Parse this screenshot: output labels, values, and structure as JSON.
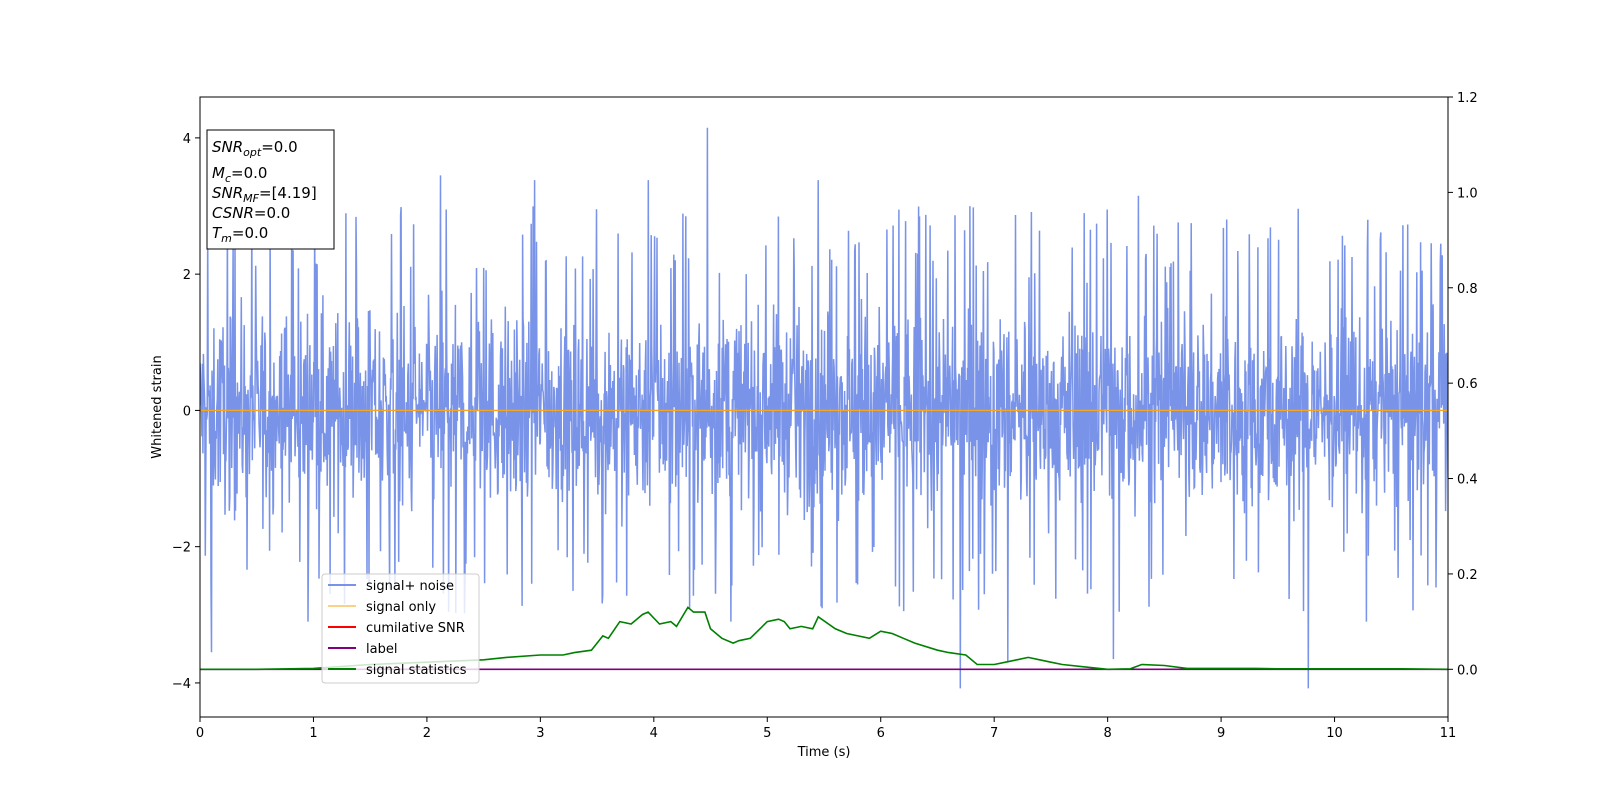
{
  "chart_data": {
    "type": "line",
    "xlabel": "Time (s)",
    "ylabel": "Whitened strain",
    "xlim": [
      0,
      11
    ],
    "ylim": [
      -4.5,
      4.6
    ],
    "y2lim": [
      -0.1,
      1.2
    ],
    "grid": false,
    "x_ticks": [
      "0",
      "1",
      "2",
      "3",
      "4",
      "5",
      "6",
      "7",
      "8",
      "9",
      "10",
      "11"
    ],
    "y_ticks": [
      "-4",
      "-2",
      "0",
      "2",
      "4"
    ],
    "y2_ticks": [
      "0.0",
      "0.2",
      "0.4",
      "0.6",
      "0.8",
      "1.0",
      "1.2"
    ],
    "info_box": {
      "snr_opt": {
        "main": "SNR",
        "sub": "opt",
        "value": "=0.0"
      },
      "mc": {
        "main": "M",
        "sub": "c",
        "value": "=0.0"
      },
      "snr_mf": {
        "main": "SNR",
        "sub": "MF",
        "value": "=[4.19]"
      },
      "csnr": {
        "main": "CSNR",
        "value": "=0.0"
      },
      "tm": {
        "main": "T",
        "sub": "m",
        "value": "=0.0"
      }
    },
    "legend": {
      "placement": "lower-left",
      "entries": [
        "signal+ noise",
        "signal only",
        "cumilative SNR",
        "label",
        "signal statistics"
      ]
    },
    "series": [
      {
        "name": "signal+ noise",
        "axis": "left",
        "color": "#7893e8",
        "envelope": "noise band approx. ±1.5, peaks up to ±3.5",
        "spikes": [
          [
            0.1,
            -3.55
          ],
          [
            0.95,
            -3.1
          ],
          [
            2.12,
            3.45
          ],
          [
            2.95,
            3.38
          ],
          [
            3.95,
            3.38
          ],
          [
            4.47,
            4.15
          ],
          [
            4.68,
            -3.1
          ],
          [
            5.45,
            3.38
          ],
          [
            6.7,
            -4.08
          ],
          [
            7.12,
            -3.7
          ],
          [
            8.05,
            -3.65
          ],
          [
            8.27,
            3.15
          ],
          [
            9.77,
            -4.08
          ],
          [
            10.28,
            -3.1
          ]
        ]
      },
      {
        "name": "signal only",
        "axis": "left",
        "color": "#f5a623",
        "x": [
          0,
          11
        ],
        "y": [
          0,
          0
        ]
      },
      {
        "name": "label",
        "axis": "right",
        "color": "#800080",
        "x": [
          0,
          11
        ],
        "y": [
          0,
          0
        ]
      },
      {
        "name": "signal statistics",
        "axis": "right",
        "color": "#008000",
        "x": [
          0,
          0.5,
          1.0,
          1.5,
          2.0,
          2.5,
          2.7,
          3.0,
          3.2,
          3.3,
          3.45,
          3.55,
          3.6,
          3.7,
          3.8,
          3.9,
          3.95,
          4.05,
          4.15,
          4.2,
          4.3,
          4.35,
          4.45,
          4.5,
          4.6,
          4.7,
          4.75,
          4.85,
          5.0,
          5.1,
          5.15,
          5.2,
          5.3,
          5.4,
          5.45,
          5.6,
          5.7,
          5.8,
          5.9,
          6.0,
          6.1,
          6.2,
          6.3,
          6.5,
          6.6,
          6.75,
          6.85,
          7.0,
          7.1,
          7.2,
          7.3,
          7.4,
          7.5,
          7.6,
          7.8,
          8.0,
          8.2,
          8.3,
          8.5,
          8.7,
          8.9,
          9.1,
          9.3,
          9.5,
          9.8,
          10.0,
          10.3,
          10.6,
          11.0
        ],
        "y": [
          0.0,
          0.0,
          0.002,
          0.01,
          0.015,
          0.02,
          0.025,
          0.03,
          0.03,
          0.035,
          0.04,
          0.07,
          0.065,
          0.1,
          0.095,
          0.115,
          0.12,
          0.095,
          0.1,
          0.09,
          0.13,
          0.12,
          0.12,
          0.085,
          0.065,
          0.055,
          0.06,
          0.065,
          0.1,
          0.105,
          0.1,
          0.085,
          0.09,
          0.085,
          0.11,
          0.085,
          0.075,
          0.07,
          0.065,
          0.08,
          0.075,
          0.065,
          0.055,
          0.04,
          0.035,
          0.03,
          0.01,
          0.01,
          0.015,
          0.02,
          0.025,
          0.02,
          0.015,
          0.01,
          0.005,
          0.0,
          0.001,
          0.01,
          0.008,
          0.002,
          0.002,
          0.002,
          0.002,
          0.001,
          0.001,
          0.001,
          0.001,
          0.001,
          0.0
        ]
      },
      {
        "name": "cumilative SNR",
        "axis": "right",
        "color": "#ff0000",
        "x": [],
        "y": []
      }
    ]
  }
}
